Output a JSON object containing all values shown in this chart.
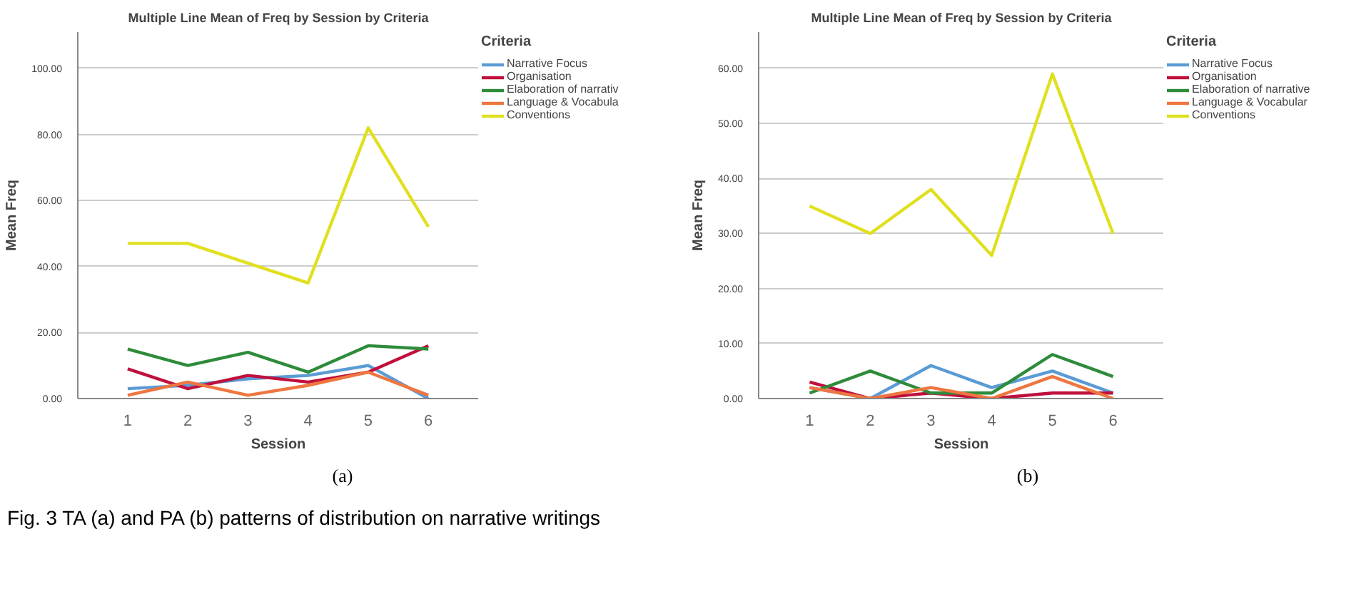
{
  "chart_data": [
    {
      "type": "line",
      "title": "Multiple Line Mean of Freq by Session by Criteria",
      "xlabel": "Session",
      "ylabel": "Mean Freq",
      "legend_title": "Criteria",
      "legend": "top right",
      "grid": "y",
      "line_style": "solid",
      "x": [
        1,
        2,
        3,
        4,
        5,
        6
      ],
      "xlim": [
        0.17,
        6.84
      ],
      "xticks": [
        1,
        2,
        3,
        4,
        5,
        6
      ],
      "ylim": [
        0,
        111
      ],
      "yticks": [
        {
          "value": 0,
          "label": "0.00"
        },
        {
          "value": 20,
          "label": "20.00"
        },
        {
          "value": 40,
          "label": "40.00"
        },
        {
          "value": 60,
          "label": "60.00"
        },
        {
          "value": 80,
          "label": "80.00"
        },
        {
          "value": 100,
          "label": "100.00"
        }
      ],
      "series": [
        {
          "name": "Narrative Focus",
          "color": "#5b9bd5",
          "values": [
            3,
            4,
            6,
            7,
            10,
            0
          ]
        },
        {
          "name": "Organisation",
          "color": "#c0103c",
          "values": [
            9,
            3,
            7,
            5,
            8,
            16
          ]
        },
        {
          "name": "Elaboration of narrativ",
          "color": "#2e8b3a",
          "values": [
            15,
            10,
            14,
            8,
            16,
            15
          ]
        },
        {
          "name": "Language & Vocabula",
          "color": "#ee7640",
          "values": [
            1,
            5,
            1,
            4,
            8,
            1
          ]
        },
        {
          "name": "Conventions",
          "color": "#e0e020",
          "values": [
            47,
            47,
            41,
            35,
            82,
            52
          ]
        }
      ],
      "annotations": [
        "(a)",
        "Fig. 3 TA (a) and PA (b) patterns of distribution on narrative writings"
      ]
    },
    {
      "type": "line",
      "title": "Multiple Line Mean of Freq by Session by Criteria",
      "xlabel": "Session",
      "ylabel": "Mean Freq",
      "legend_title": "Criteria",
      "legend": "top right",
      "grid": "y",
      "line_style": "solid",
      "x": [
        1,
        2,
        3,
        4,
        5,
        6
      ],
      "xlim": [
        0.16,
        6.84
      ],
      "xticks": [
        1,
        2,
        3,
        4,
        5,
        6
      ],
      "ylim": [
        0,
        66.6
      ],
      "yticks": [
        {
          "value": 0,
          "label": "0.00"
        },
        {
          "value": 10,
          "label": "10.00"
        },
        {
          "value": 20,
          "label": "20.00"
        },
        {
          "value": 30,
          "label": "30.00"
        },
        {
          "value": 40,
          "label": "40.00"
        },
        {
          "value": 50,
          "label": "50.00"
        },
        {
          "value": 60,
          "label": "60.00"
        }
      ],
      "series": [
        {
          "name": "Narrative Focus",
          "color": "#5b9bd5",
          "values": [
            2,
            0,
            6,
            2,
            5,
            1
          ]
        },
        {
          "name": "Organisation",
          "color": "#c0103c",
          "values": [
            3,
            0,
            1,
            0,
            1,
            1
          ]
        },
        {
          "name": "Elaboration of narrative",
          "color": "#2e8b3a",
          "values": [
            1,
            5,
            1,
            1,
            8,
            4
          ]
        },
        {
          "name": "Language & Vocabular",
          "color": "#ee7640",
          "values": [
            2,
            0,
            2,
            0,
            4,
            0
          ]
        },
        {
          "name": "Conventions",
          "color": "#e0e020",
          "values": [
            35,
            30,
            38,
            26,
            59,
            30
          ]
        }
      ],
      "annotations": [
        "(b)"
      ]
    }
  ]
}
